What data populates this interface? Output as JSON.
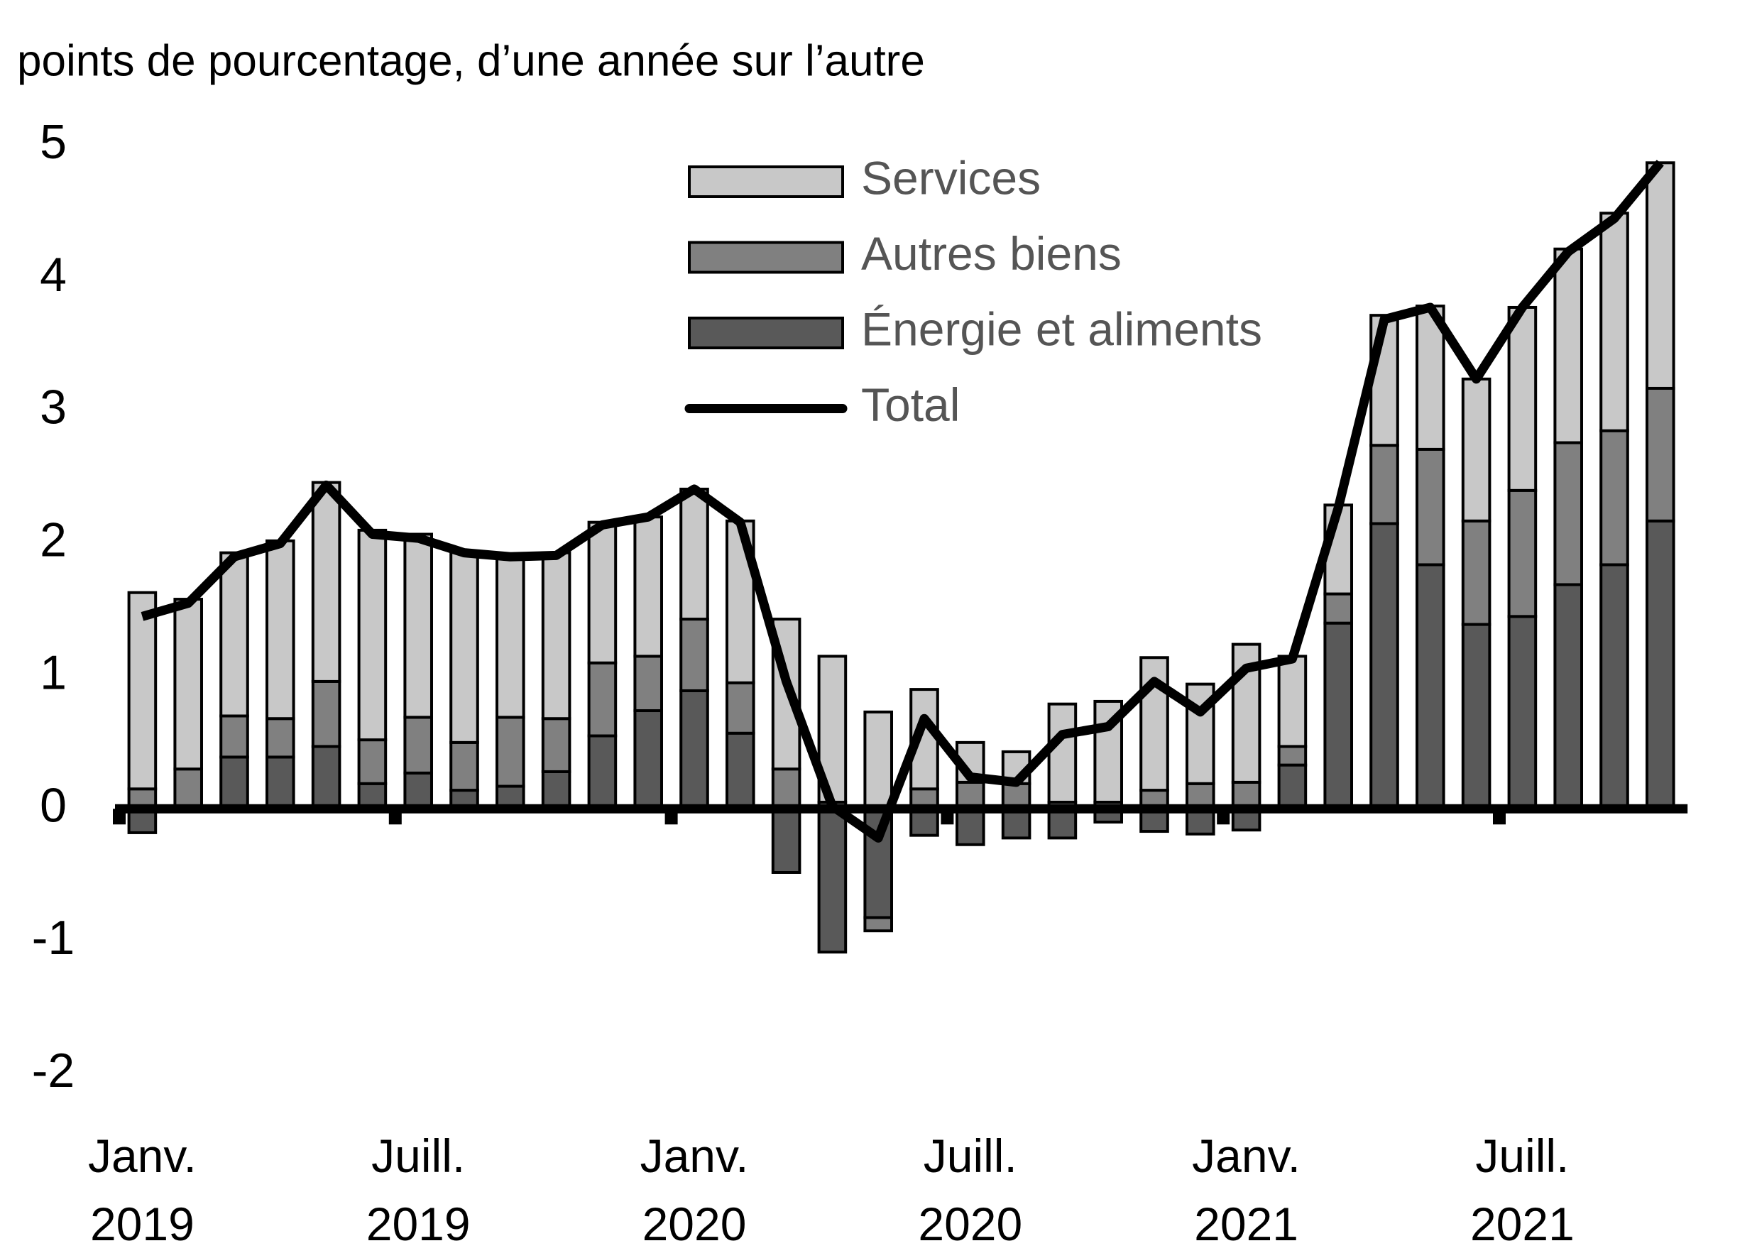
{
  "chart_data": {
    "type": "bar",
    "title": "points de pourcentage, d’une année sur l’autre",
    "categories": [
      "Janv. 2019",
      null,
      null,
      null,
      null,
      null,
      "Juill. 2019",
      null,
      null,
      null,
      null,
      null,
      "Janv. 2020",
      null,
      null,
      null,
      null,
      null,
      "Juill. 2020",
      null,
      null,
      null,
      null,
      null,
      "Janv. 2021",
      null,
      null,
      null,
      null,
      null,
      "Juill. 2021",
      null,
      null,
      null
    ],
    "series": [
      {
        "name": "Énergie et aliments",
        "color": "#595959",
        "values": [
          -0.18,
          0,
          0.39,
          0.39,
          0.47,
          0.19,
          0.27,
          0.14,
          0.17,
          0.28,
          0.55,
          0.74,
          0.89,
          0.57,
          -0.48,
          -1.08,
          -0.82,
          -0.2,
          -0.27,
          -0.22,
          -0.22,
          -0.1,
          -0.17,
          -0.19,
          -0.16,
          0.33,
          1.4,
          2.15,
          1.84,
          1.39,
          1.45,
          1.69,
          1.84,
          2.17
        ]
      },
      {
        "name": "Autres biens",
        "color": "#808080",
        "values": [
          0.15,
          0.3,
          0.31,
          0.29,
          0.49,
          0.33,
          0.42,
          0.36,
          0.52,
          0.4,
          0.55,
          0.41,
          0.54,
          0.38,
          0.3,
          0.05,
          -0.1,
          0.15,
          0.2,
          0.19,
          0.05,
          0.05,
          0.14,
          0.19,
          0.2,
          0.14,
          0.22,
          0.59,
          0.87,
          0.78,
          0.95,
          1.07,
          1.01,
          1.0
        ]
      },
      {
        "name": "Services",
        "color": "#c8c8c8",
        "values": [
          1.48,
          1.28,
          1.23,
          1.34,
          1.5,
          1.58,
          1.38,
          1.44,
          1.21,
          1.25,
          1.06,
          1.05,
          0.98,
          1.22,
          1.13,
          1.1,
          0.73,
          0.75,
          0.3,
          0.24,
          0.74,
          0.76,
          1.0,
          0.75,
          1.04,
          0.68,
          0.67,
          0.98,
          1.08,
          1.07,
          1.38,
          1.46,
          1.64,
          1.7
        ]
      },
      {
        "name": "Total",
        "type": "line",
        "color": "#000000",
        "values": [
          1.45,
          1.55,
          1.9,
          2.0,
          2.44,
          2.07,
          2.04,
          1.93,
          1.9,
          1.91,
          2.14,
          2.2,
          2.41,
          2.16,
          0.96,
          0.02,
          -0.22,
          0.68,
          0.24,
          0.2,
          0.56,
          0.62,
          0.96,
          0.73,
          1.06,
          1.13,
          2.27,
          3.69,
          3.78,
          3.24,
          3.78,
          4.2,
          4.45,
          4.87
        ]
      }
    ],
    "ylim": [
      -2,
      5
    ],
    "yticks": [
      -2,
      -1,
      0,
      1,
      2,
      3,
      4,
      5
    ],
    "grid": false,
    "legend": "top"
  }
}
